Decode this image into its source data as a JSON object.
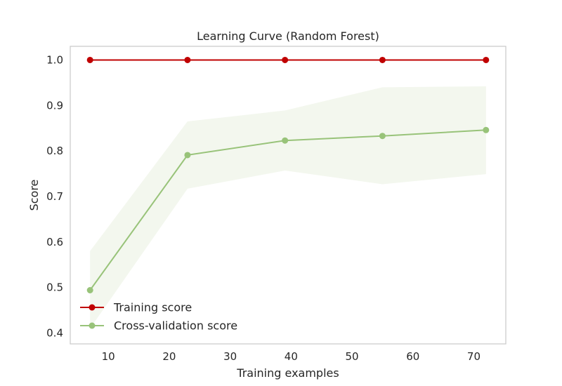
{
  "chart_data": {
    "type": "line",
    "title": "Learning Curve (Random Forest)",
    "xlabel": "Training examples",
    "ylabel": "Score",
    "xlim": [
      3.75,
      75.25
    ],
    "ylim": [
      0.376,
      1.03
    ],
    "xticks": [
      "10",
      "20",
      "30",
      "40",
      "50",
      "60",
      "70"
    ],
    "xtick_values": [
      10,
      20,
      30,
      40,
      50,
      60,
      70
    ],
    "yticks": [
      "0.4",
      "0.5",
      "0.6",
      "0.7",
      "0.8",
      "0.9",
      "1.0"
    ],
    "ytick_values": [
      0.4,
      0.5,
      0.6,
      0.7,
      0.8,
      0.9,
      1.0
    ],
    "grid": false,
    "legend_position": "lower-left",
    "x": [
      7,
      23,
      39,
      55,
      72
    ],
    "series": [
      {
        "name": "Training score",
        "color": "#c00000",
        "values": [
          1.0,
          1.0,
          1.0,
          1.0,
          1.0
        ],
        "band_lower": [
          1.0,
          1.0,
          1.0,
          1.0,
          1.0
        ],
        "band_upper": [
          1.0,
          1.0,
          1.0,
          1.0,
          1.0
        ]
      },
      {
        "name": "Cross-validation score",
        "color": "#98c379",
        "band_color": "#f3f7ee",
        "values": [
          0.494,
          0.791,
          0.823,
          0.833,
          0.846
        ],
        "band_lower": [
          0.41,
          0.717,
          0.757,
          0.727,
          0.749
        ],
        "band_upper": [
          0.58,
          0.865,
          0.889,
          0.94,
          0.942
        ]
      }
    ]
  }
}
